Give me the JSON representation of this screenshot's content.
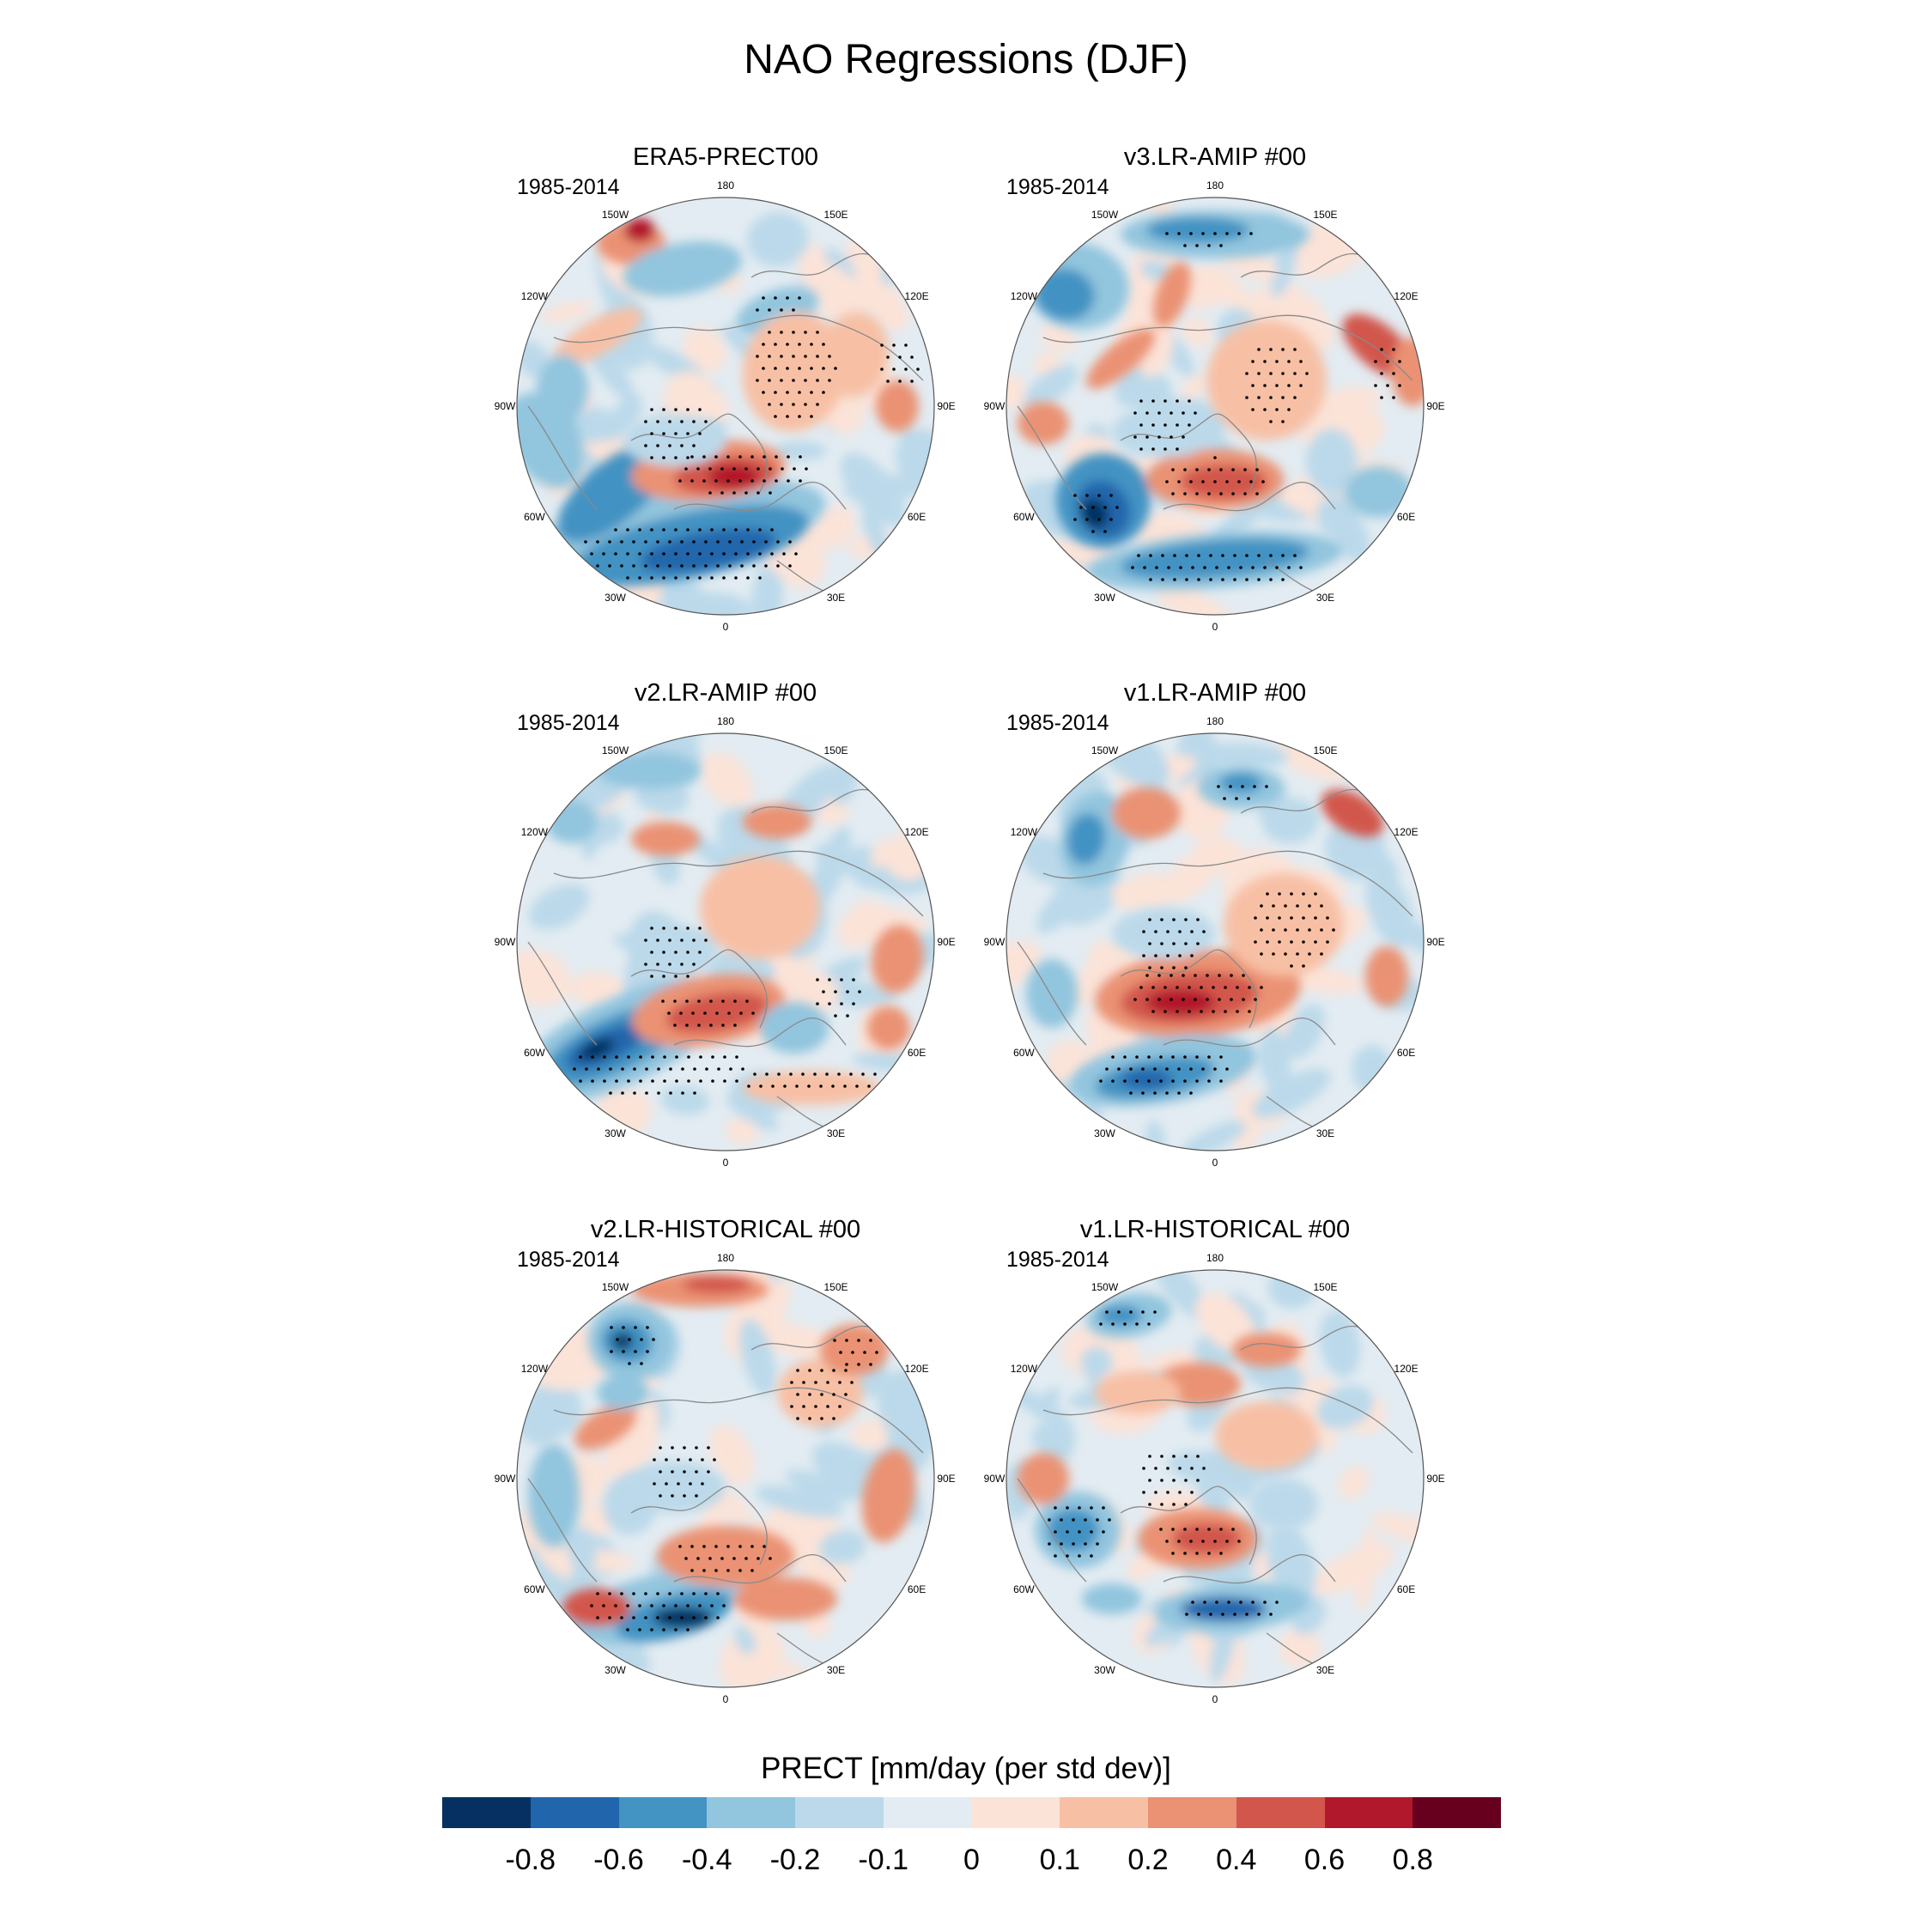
{
  "title": "NAO Regressions (DJF)",
  "panels": [
    {
      "title": "ERA5-PRECT00",
      "period": "1985-2014",
      "key": "era5"
    },
    {
      "title": "v3.LR-AMIP  #00",
      "period": "1985-2014",
      "key": "v3amip"
    },
    {
      "title": "v2.LR-AMIP  #00",
      "period": "1985-2014",
      "key": "v2amip"
    },
    {
      "title": "v1.LR-AMIP  #00",
      "period": "1985-2014",
      "key": "v1amip"
    },
    {
      "title": "v2.LR-HISTORICAL  #00",
      "period": "1985-2014",
      "key": "v2hist"
    },
    {
      "title": "v1.LR-HISTORICAL  #00",
      "period": "1985-2014",
      "key": "v1hist"
    }
  ],
  "longitude_labels": [
    "180",
    "150E",
    "120E",
    "90E",
    "60E",
    "30E",
    "0",
    "30W",
    "60W",
    "90W",
    "120W",
    "150W"
  ],
  "colorbar": {
    "title": "PRECT [mm/day (per std dev)]",
    "tick_labels": [
      "-0.8",
      "-0.6",
      "-0.4",
      "-0.2",
      "-0.1",
      "0",
      "0.1",
      "0.2",
      "0.4",
      "0.6",
      "0.8"
    ],
    "colors": [
      "#053061",
      "#2166ac",
      "#4393c3",
      "#92c5de",
      "#bbd9ea",
      "#e3ecf2",
      "#fbe3d8",
      "#f7c0a5",
      "#ea9273",
      "#d2564b",
      "#b2182b",
      "#67001f"
    ]
  }
}
